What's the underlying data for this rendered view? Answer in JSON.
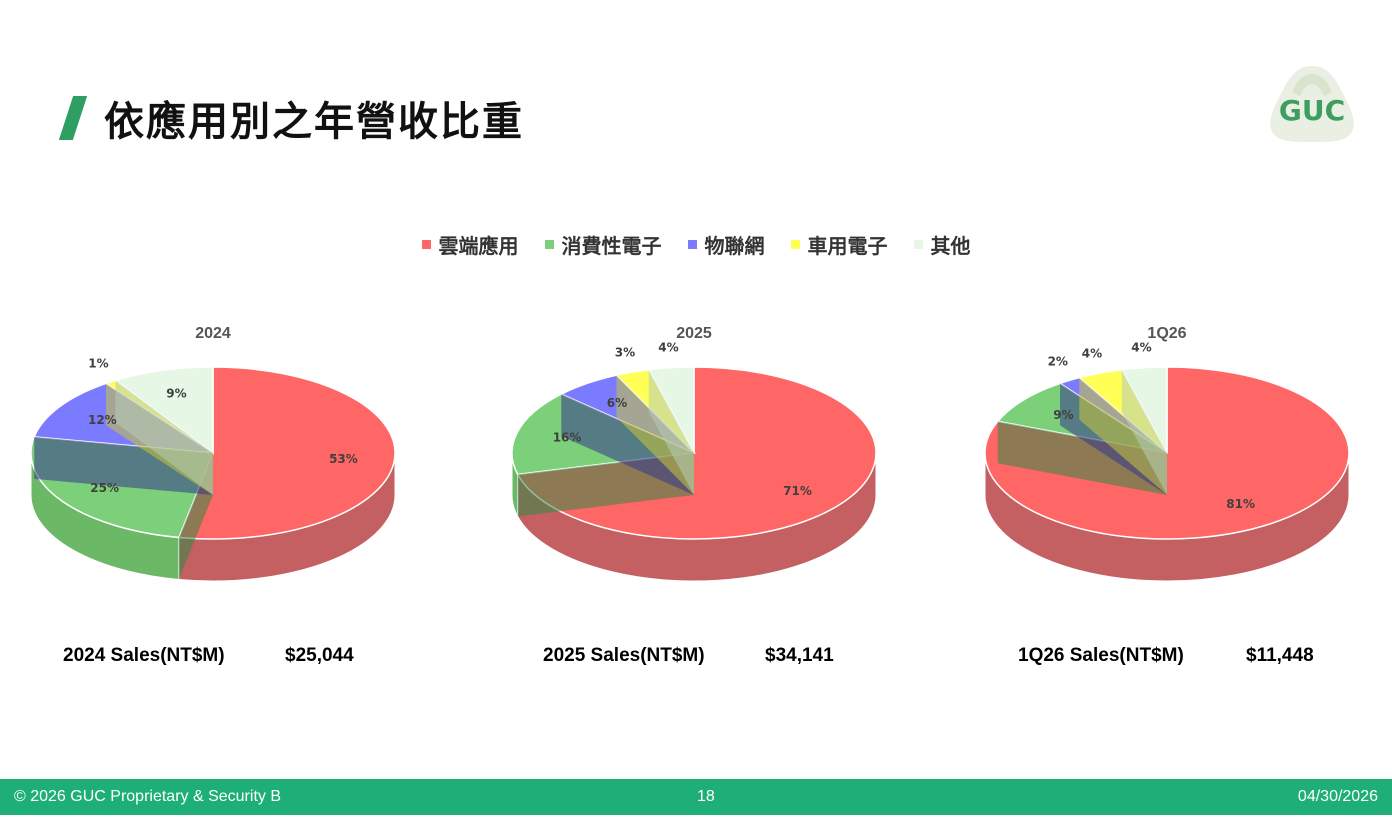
{
  "page": {
    "title": "依應用別之年營收比重",
    "logo_text": "GUC"
  },
  "legend": [
    {
      "label": "雲端應用",
      "color": "#ff6666"
    },
    {
      "label": "消費性電子",
      "color": "#7dd07a"
    },
    {
      "label": "物聯網",
      "color": "#7b7bff"
    },
    {
      "label": "車用電子",
      "color": "#ffff55"
    },
    {
      "label": "其他",
      "color": "#e6f7e6"
    }
  ],
  "chart_data": [
    {
      "type": "pie",
      "title": "2024",
      "categories": [
        "雲端應用",
        "消費性電子",
        "物聯網",
        "車用電子",
        "其他"
      ],
      "values": [
        53,
        25,
        12,
        1,
        9
      ],
      "labels": [
        "53%",
        "25%",
        "12%",
        "1%",
        "9%"
      ]
    },
    {
      "type": "pie",
      "title": "2025",
      "categories": [
        "雲端應用",
        "消費性電子",
        "物聯網",
        "車用電子",
        "其他"
      ],
      "values": [
        71,
        16,
        6,
        3,
        4
      ],
      "labels": [
        "71%",
        "16%",
        "6%",
        "3%",
        "4%"
      ]
    },
    {
      "type": "pie",
      "title": "1Q26",
      "categories": [
        "雲端應用",
        "消費性電子",
        "物聯網",
        "車用電子",
        "其他"
      ],
      "values": [
        81,
        9,
        2,
        4,
        4
      ],
      "labels": [
        "81%",
        "9%",
        "2%",
        "4%",
        "4%"
      ]
    }
  ],
  "sales": [
    {
      "label": "2024 Sales(NT$M)",
      "value": "$25,044"
    },
    {
      "label": "2025 Sales(NT$M)",
      "value": "$34,141"
    },
    {
      "label": "1Q26 Sales(NT$M)",
      "value": "$11,448"
    }
  ],
  "footer": {
    "copyright": "© 2026 GUC Proprietary & Security B",
    "page_number": "18",
    "date": "04/30/2026"
  }
}
